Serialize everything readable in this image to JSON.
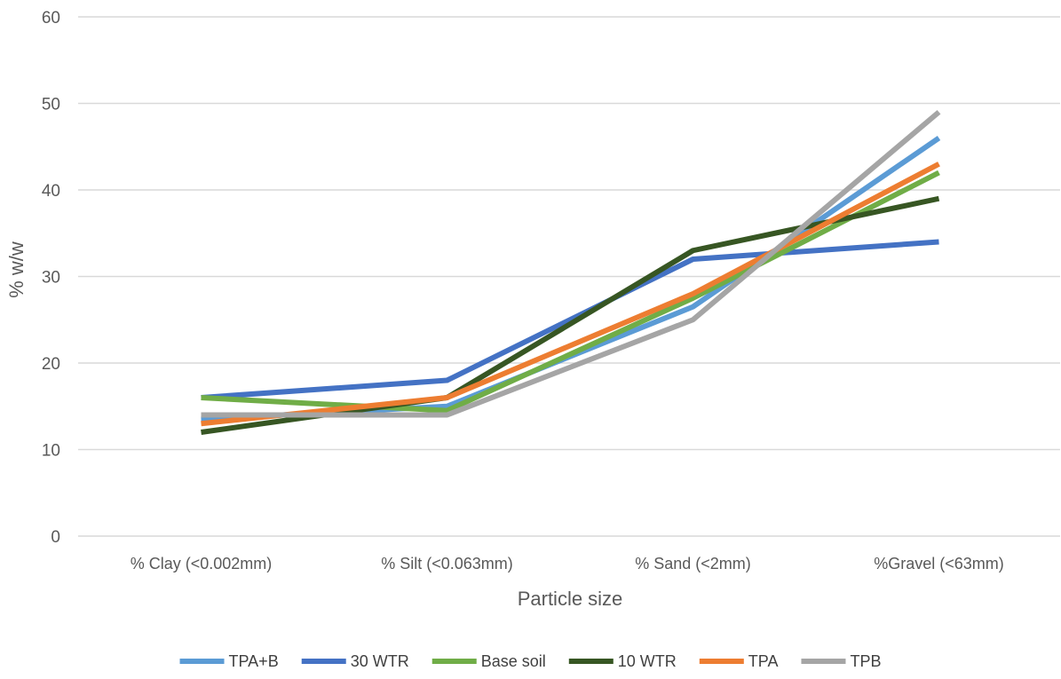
{
  "chart_data": {
    "type": "line",
    "title": "",
    "xlabel": "Particle size",
    "ylabel": "% w/w",
    "categories": [
      "% Clay (<0.002mm)",
      "% Silt (<0.063mm)",
      "% Sand (<2mm)",
      "%Gravel (<63mm)"
    ],
    "ylim": [
      0,
      60
    ],
    "yticks": [
      0,
      10,
      20,
      30,
      40,
      50,
      60
    ],
    "grid": true,
    "legend_position": "bottom",
    "series": [
      {
        "name": "TPA+B",
        "color": "#5B9BD5",
        "values": [
          13.5,
          15,
          26.5,
          46
        ]
      },
      {
        "name": "30 WTR",
        "color": "#4472C4",
        "values": [
          16,
          18,
          32,
          34
        ]
      },
      {
        "name": "Base soil",
        "color": "#70AD47",
        "values": [
          16,
          14.5,
          27.5,
          42
        ]
      },
      {
        "name": "10 WTR",
        "color": "#375623",
        "values": [
          12,
          16,
          33,
          39
        ]
      },
      {
        "name": "TPA",
        "color": "#ED7D31",
        "values": [
          13,
          16,
          28,
          43
        ]
      },
      {
        "name": "TPB",
        "color": "#A5A5A5",
        "values": [
          14,
          14,
          25,
          49
        ]
      }
    ]
  }
}
